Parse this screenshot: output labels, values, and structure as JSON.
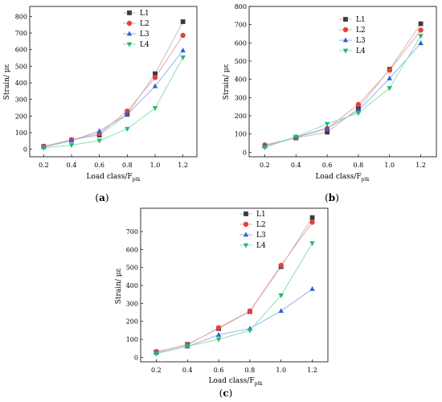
{
  "colors": {
    "L1": "#3c3c3c",
    "L2": "#e8413a",
    "L3": "#2b63d8",
    "L4": "#1ebc6a",
    "L1_line": "#c2c2c2",
    "L2_line": "#f4a3a0",
    "L3_line": "#93b2ee",
    "L4_line": "#90dfb6"
  },
  "markers": {
    "L1": "square",
    "L2": "circle",
    "L3": "triangle-up",
    "L4": "triangle-down"
  },
  "chart_data": [
    {
      "panel": "a",
      "type": "line",
      "xlabel_main": "Load class/F",
      "xlabel_sub": "ptk",
      "ylabel": "Strain/ με",
      "x": [
        0.2,
        0.4,
        0.6,
        0.8,
        1.0,
        1.2
      ],
      "x_tick_labels": [
        "0.2",
        "0.4",
        "0.6",
        "0.8",
        "1.0",
        "1.2"
      ],
      "y_ticks": [
        0,
        100,
        200,
        300,
        400,
        500,
        600,
        700,
        800
      ],
      "xlim": [
        0.1,
        1.3
      ],
      "ylim": [
        -45,
        860
      ],
      "legend_position": "top-right",
      "series": [
        {
          "name": "L1",
          "values": [
            17,
            55,
            86,
            210,
            455,
            768
          ]
        },
        {
          "name": "L2",
          "values": [
            18,
            58,
            95,
            230,
            432,
            686
          ]
        },
        {
          "name": "L3",
          "values": [
            13,
            52,
            110,
            210,
            380,
            595
          ]
        },
        {
          "name": "L4",
          "values": [
            8,
            25,
            52,
            123,
            248,
            553
          ]
        }
      ]
    },
    {
      "panel": "b",
      "type": "line",
      "xlabel_main": "Load class/F",
      "xlabel_sub": "ptk",
      "ylabel": "Strain/ με",
      "x": [
        0.2,
        0.4,
        0.6,
        0.8,
        1.0,
        1.2
      ],
      "x_tick_labels": [
        "0.2",
        "0.4",
        "0.6",
        "0.8",
        "1.0",
        "1.2"
      ],
      "y_ticks": [
        0,
        100,
        200,
        300,
        400,
        500,
        600,
        700,
        800
      ],
      "xlim": [
        0.1,
        1.3
      ],
      "ylim": [
        -25,
        800
      ],
      "legend_position": "top-right",
      "series": [
        {
          "name": "L1",
          "values": [
            35,
            78,
            110,
            240,
            455,
            705
          ]
        },
        {
          "name": "L2",
          "values": [
            40,
            80,
            130,
            262,
            450,
            670
          ]
        },
        {
          "name": "L3",
          "values": [
            35,
            83,
            132,
            228,
            405,
            598
          ]
        },
        {
          "name": "L4",
          "values": [
            26,
            85,
            155,
            215,
            352,
            638
          ]
        }
      ]
    },
    {
      "panel": "c",
      "type": "line",
      "xlabel_main": "Load class/F",
      "xlabel_sub": "ptk",
      "ylabel": "Strain/ με",
      "x": [
        0.2,
        0.4,
        0.6,
        0.8,
        1.0,
        1.2
      ],
      "x_tick_labels": [
        "0.2",
        "0.4",
        "0.6",
        "0.8",
        "1.0",
        "1.2"
      ],
      "y_ticks": [
        0,
        100,
        200,
        300,
        400,
        500,
        600,
        700
      ],
      "xlim": [
        0.1,
        1.3
      ],
      "ylim": [
        -25,
        830
      ],
      "legend_position": "top-left",
      "series": [
        {
          "name": "L1",
          "values": [
            30,
            72,
            160,
            255,
            505,
            778
          ]
        },
        {
          "name": "L2",
          "values": [
            32,
            68,
            165,
            258,
            512,
            752
          ]
        },
        {
          "name": "L3",
          "values": [
            25,
            60,
            125,
            160,
            258,
            380
          ]
        },
        {
          "name": "L4",
          "values": [
            20,
            62,
            100,
            150,
            345,
            635
          ]
        }
      ]
    }
  ],
  "panel_labels": [
    "a",
    "b",
    "c"
  ]
}
